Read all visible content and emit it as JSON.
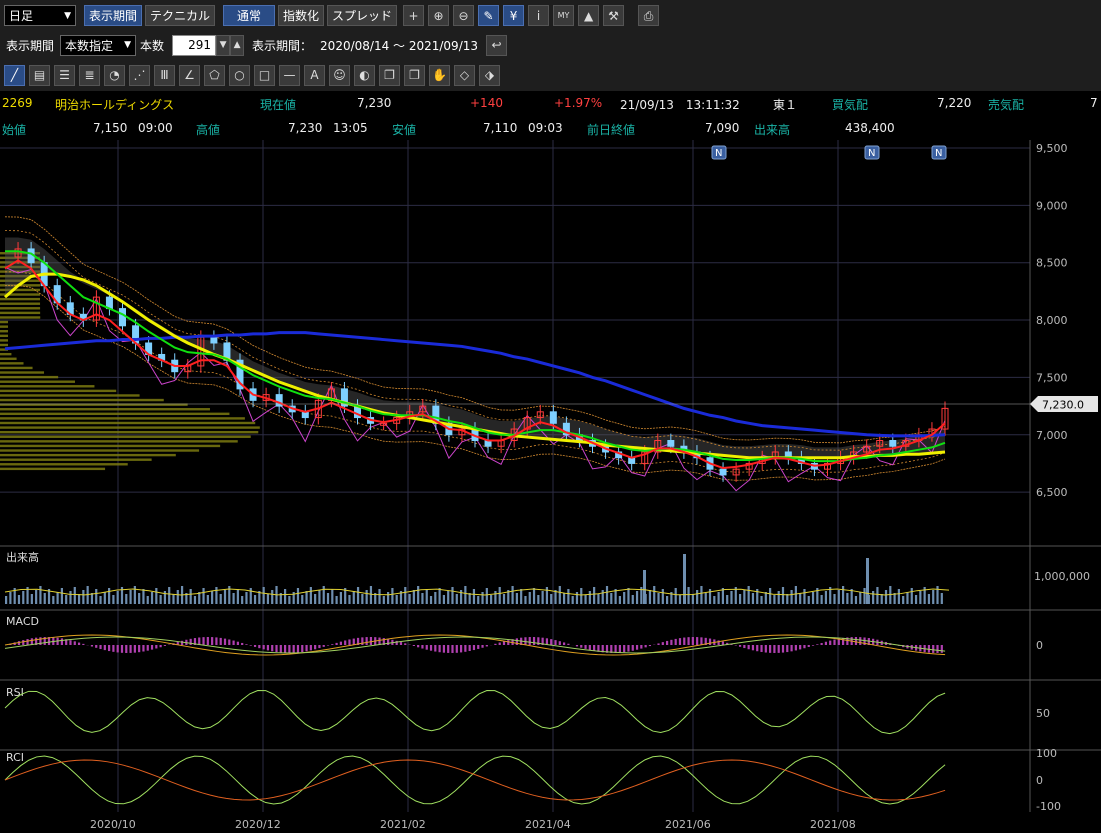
{
  "toolbar": {
    "period_select": "日足",
    "tabs": [
      "表示期間",
      "テクニカル"
    ],
    "mode_buttons": [
      "通常",
      "指数化",
      "スプレッド"
    ],
    "icons": [
      "crosshair-icon",
      "zoom-in-icon",
      "zoom-out-icon",
      "pencil-icon",
      "yen-icon",
      "info-icon",
      "my-chart-icon",
      "area-chart-icon",
      "wrench-icon",
      "print-icon"
    ],
    "icon_glyphs": [
      "+",
      "⊕",
      "⊖",
      "✎",
      "¥",
      "i",
      "MY",
      "▲",
      "⚒",
      "⎙"
    ]
  },
  "period_bar": {
    "label": "表示期間",
    "mode_select": "本数指定",
    "count_label": "本数",
    "count_value": "291",
    "range_label": "表示期間：",
    "range_value": "2020/08/14 ～ 2021/09/13"
  },
  "drawing_tools": {
    "names": [
      "trendline-icon",
      "ruler-icon",
      "horizontal-lines-icon",
      "multi-lines-icon",
      "gann-fan-icon",
      "fan-lines-icon",
      "vertical-lines-icon",
      "angle-icon",
      "pentagon-icon",
      "circle-icon",
      "rectangle-icon",
      "horizontal-line-icon",
      "text-icon",
      "stamp-icon",
      "color-icon",
      "copy-icon",
      "paste-icon",
      "hand-icon",
      "eraser-icon",
      "clear-icon"
    ],
    "glyphs": [
      "╱",
      "▤",
      "☰",
      "≣",
      "◔",
      "⋰",
      "Ⅲ",
      "∠",
      "⬠",
      "○",
      "□",
      "—",
      "A",
      "☺",
      "◐",
      "❐",
      "❐",
      "✋",
      "◇",
      "⬗"
    ]
  },
  "quote": {
    "code": "2269",
    "name": "明治ホールディングス",
    "current_label": "現在値",
    "current_value": "7,230",
    "change": "+140",
    "change_pct": "+1.97%",
    "datetime": "21/09/13　13:11:32",
    "market": "東１",
    "bid_label": "買気配",
    "bid_value": "7,220",
    "ask_label": "売気配",
    "ask_value": "7",
    "open_label": "始値",
    "open_value": "7,150",
    "open_time": "09:00",
    "high_label": "高値",
    "high_value": "7,230",
    "high_time": "13:05",
    "low_label": "安値",
    "low_value": "7,110",
    "low_time": "09:03",
    "prev_label": "前日終値",
    "prev_value": "7,090",
    "volume_label": "出来高",
    "volume_value": "438,400"
  },
  "colors": {
    "up_candle": "#ff3b3b",
    "down_candle": "#7fd0ff",
    "ma_short": "#ff2020",
    "ma_mid": "#10e010",
    "ma_long": "#f0f000",
    "ma_200": "#1a2bd8",
    "bollinger": "#d28a30",
    "indicator_line": "#cc44cc",
    "cloud": "#555555",
    "volume_bar": "#6f8fb0",
    "macd_hist": "#b040b0"
  },
  "chart_data": {
    "type": "candlestick",
    "price_ticks": [
      "9,500",
      "9,000",
      "8,500",
      "8,000",
      "7,500",
      "7,000",
      "6,500"
    ],
    "ylim": [
      6100,
      9500
    ],
    "x_ticks": [
      "2020/10",
      "2020/12",
      "2021/02",
      "2021/04",
      "2021/06",
      "2021/08"
    ],
    "current_price_tag": "7,230.0",
    "news_markers": [
      "N",
      "N",
      "N"
    ],
    "close_series": [
      8550,
      8620,
      8500,
      8300,
      8150,
      8050,
      8000,
      8200,
      8100,
      7950,
      7800,
      7700,
      7650,
      7550,
      7600,
      7850,
      7800,
      7650,
      7400,
      7300,
      7350,
      7250,
      7200,
      7150,
      7300,
      7400,
      7250,
      7150,
      7100,
      7100,
      7150,
      7200,
      7250,
      7100,
      7000,
      7050,
      6950,
      6900,
      6950,
      7050,
      7150,
      7200,
      7100,
      7000,
      6950,
      6900,
      6850,
      6800,
      6750,
      6850,
      6950,
      6900,
      6850,
      6800,
      6700,
      6650,
      6700,
      6750,
      6800,
      6850,
      6800,
      6750,
      6700,
      6750,
      6800,
      6850,
      6900,
      6950,
      6900,
      6950,
      7000,
      7050,
      7230
    ],
    "ma_short": [
      8450,
      8520,
      8450,
      8300,
      8150,
      8050,
      8000,
      8050,
      8000,
      7900,
      7800,
      7700,
      7650,
      7600,
      7600,
      7650,
      7650,
      7600,
      7450,
      7350,
      7320,
      7280,
      7230,
      7200,
      7230,
      7280,
      7230,
      7180,
      7130,
      7110,
      7130,
      7160,
      7180,
      7120,
      7050,
      7040,
      6990,
      6950,
      6950,
      6990,
      7060,
      7110,
      7080,
      7020,
      6980,
      6930,
      6880,
      6840,
      6800,
      6830,
      6880,
      6880,
      6850,
      6810,
      6750,
      6710,
      6720,
      6740,
      6770,
      6800,
      6790,
      6760,
      6730,
      6740,
      6770,
      6800,
      6830,
      6870,
      6880,
      6910,
      6950,
      7000,
      7100
    ],
    "ma_mid": [
      8600,
      8600,
      8580,
      8500,
      8400,
      8300,
      8200,
      8150,
      8100,
      8050,
      7980,
      7900,
      7830,
      7760,
      7720,
      7710,
      7700,
      7660,
      7590,
      7520,
      7470,
      7420,
      7380,
      7340,
      7320,
      7310,
      7280,
      7250,
      7210,
      7180,
      7170,
      7170,
      7170,
      7150,
      7120,
      7100,
      7060,
      7020,
      7000,
      7000,
      7020,
      7040,
      7040,
      7020,
      7000,
      6970,
      6930,
      6900,
      6870,
      6860,
      6870,
      6880,
      6870,
      6850,
      6820,
      6790,
      6780,
      6780,
      6790,
      6800,
      6800,
      6790,
      6770,
      6770,
      6770,
      6790,
      6800,
      6820,
      6830,
      6850,
      6870,
      6890,
      6930
    ],
    "ma_long": [
      8200,
      8300,
      8380,
      8400,
      8400,
      8380,
      8350,
      8300,
      8230,
      8160,
      8080,
      8000,
      7930,
      7860,
      7800,
      7750,
      7700,
      7660,
      7610,
      7560,
      7510,
      7460,
      7420,
      7380,
      7340,
      7310,
      7280,
      7250,
      7220,
      7190,
      7170,
      7150,
      7130,
      7110,
      7090,
      7070,
      7050,
      7030,
      7010,
      6990,
      6980,
      6970,
      6960,
      6950,
      6940,
      6930,
      6910,
      6900,
      6890,
      6880,
      6870,
      6860,
      6850,
      6840,
      6830,
      6820,
      6810,
      6800,
      6800,
      6800,
      6800,
      6800,
      6800,
      6800,
      6800,
      6810,
      6810,
      6820,
      6820,
      6830,
      6830,
      6840,
      6850
    ],
    "ma_200": [
      7750,
      7760,
      7770,
      7780,
      7790,
      7800,
      7810,
      7820,
      7820,
      7830,
      7830,
      7840,
      7840,
      7850,
      7850,
      7860,
      7860,
      7870,
      7870,
      7880,
      7880,
      7890,
      7890,
      7890,
      7880,
      7870,
      7860,
      7850,
      7840,
      7830,
      7820,
      7810,
      7800,
      7790,
      7780,
      7770,
      7750,
      7730,
      7710,
      7680,
      7660,
      7630,
      7600,
      7570,
      7540,
      7500,
      7470,
      7430,
      7390,
      7350,
      7310,
      7270,
      7230,
      7200,
      7170,
      7150,
      7120,
      7100,
      7080,
      7070,
      7060,
      7050,
      7040,
      7030,
      7020,
      7010,
      7000,
      6995,
      6990,
      6990,
      6990,
      6995,
      7000
    ],
    "volume_ticks": [
      "1,000,000"
    ],
    "macd_ticks": [
      "0"
    ],
    "rsi_ticks": [
      "50"
    ],
    "rci_ticks": [
      "100",
      "0",
      "-100"
    ]
  },
  "panels": {
    "volume_title": "出来高",
    "macd_title": "MACD",
    "rsi_title": "RSI",
    "rci_title": "RCI"
  }
}
